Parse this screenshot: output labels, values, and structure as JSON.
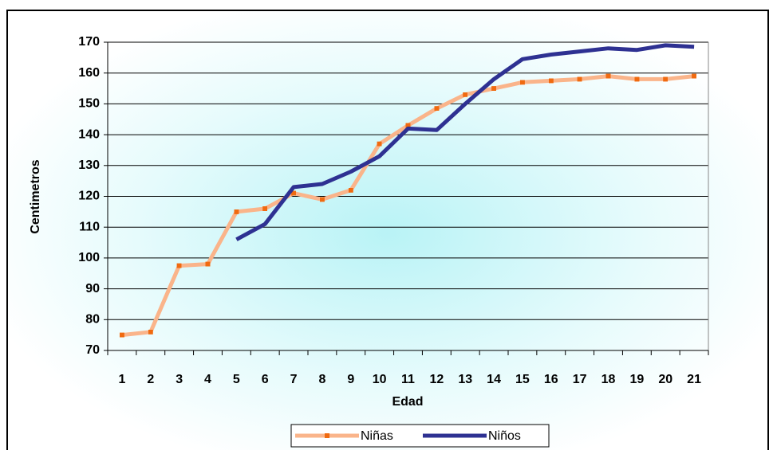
{
  "chart_data": {
    "type": "line",
    "x_label": "Edad",
    "y_label": "Centimetros",
    "categories": [
      "1",
      "2",
      "3",
      "4",
      "5",
      "6",
      "7",
      "8",
      "9",
      "10",
      "11",
      "12",
      "13",
      "14",
      "15",
      "16",
      "17",
      "18",
      "19",
      "20",
      "21"
    ],
    "series": [
      {
        "name": "Niñas",
        "color": "#fab48a",
        "marker_color": "#f06a10",
        "values": [
          75,
          76,
          97.5,
          98,
          115,
          116,
          121,
          119,
          122,
          137,
          143,
          148.5,
          153,
          155,
          157,
          157.5,
          158,
          159,
          158,
          158,
          159
        ]
      },
      {
        "name": "Niños",
        "color": "#2e3192",
        "values": [
          null,
          null,
          null,
          null,
          106,
          111,
          123,
          124,
          128,
          133,
          142,
          141.5,
          150,
          158,
          164.5,
          166,
          167,
          168,
          167.5,
          169,
          168.5
        ]
      }
    ],
    "ylim": [
      70,
      170
    ],
    "yticks": [
      70,
      80,
      90,
      100,
      110,
      120,
      130,
      140,
      150,
      160,
      170
    ],
    "grid": true
  }
}
